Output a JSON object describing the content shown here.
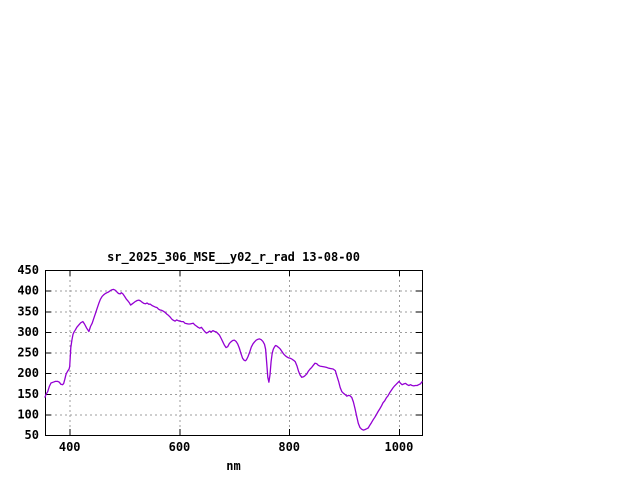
{
  "window": {
    "background": "#ffffff",
    "border_color": "#000000",
    "grid_color": "#9e9e9e",
    "text_color": "#000000"
  },
  "chart_data": {
    "type": "line",
    "title": "sr_2025_306_MSE__y02_r_rad 13-08-00",
    "xlabel": "nm",
    "ylabel": "",
    "xlim": [
      355,
      1042
    ],
    "ylim": [
      50,
      450
    ],
    "x_ticks": [
      400,
      600,
      800,
      1000
    ],
    "y_ticks": [
      50,
      100,
      150,
      200,
      250,
      300,
      350,
      400,
      450
    ],
    "grid": true,
    "legend_position": "none",
    "series": [
      {
        "name": "sr_2025_306_MSE__y02_r_rad",
        "color": "#9400d3",
        "points": [
          [
            355,
            142
          ],
          [
            357,
            149
          ],
          [
            360,
            155
          ],
          [
            363,
            168
          ],
          [
            366,
            176
          ],
          [
            370,
            178
          ],
          [
            374,
            180
          ],
          [
            378,
            180
          ],
          [
            381,
            178
          ],
          [
            384,
            173
          ],
          [
            387,
            172
          ],
          [
            389,
            175
          ],
          [
            391,
            185
          ],
          [
            393,
            196
          ],
          [
            395,
            202
          ],
          [
            397,
            206
          ],
          [
            399,
            210
          ],
          [
            400,
            216
          ],
          [
            402,
            262
          ],
          [
            404,
            280
          ],
          [
            406,
            294
          ],
          [
            408,
            300
          ],
          [
            410,
            304
          ],
          [
            413,
            311
          ],
          [
            416,
            316
          ],
          [
            420,
            322
          ],
          [
            424,
            325
          ],
          [
            427,
            319
          ],
          [
            431,
            309
          ],
          [
            435,
            301
          ],
          [
            438,
            313
          ],
          [
            441,
            321
          ],
          [
            444,
            333
          ],
          [
            447,
            345
          ],
          [
            450,
            357
          ],
          [
            453,
            369
          ],
          [
            456,
            379
          ],
          [
            459,
            386
          ],
          [
            462,
            390
          ],
          [
            465,
            393
          ],
          [
            468,
            395
          ],
          [
            471,
            397
          ],
          [
            474,
            400
          ],
          [
            477,
            402
          ],
          [
            480,
            403
          ],
          [
            483,
            401
          ],
          [
            486,
            397
          ],
          [
            489,
            393
          ],
          [
            492,
            392
          ],
          [
            494,
            395
          ],
          [
            497,
            392
          ],
          [
            500,
            386
          ],
          [
            503,
            380
          ],
          [
            506,
            375
          ],
          [
            509,
            370
          ],
          [
            511,
            365
          ],
          [
            514,
            368
          ],
          [
            517,
            371
          ],
          [
            520,
            374
          ],
          [
            523,
            376
          ],
          [
            526,
            377
          ],
          [
            529,
            375
          ],
          [
            532,
            372
          ],
          [
            535,
            369
          ],
          [
            538,
            368
          ],
          [
            541,
            370
          ],
          [
            544,
            367
          ],
          [
            547,
            367
          ],
          [
            550,
            364
          ],
          [
            553,
            362
          ],
          [
            556,
            360
          ],
          [
            559,
            359
          ],
          [
            562,
            355
          ],
          [
            565,
            353
          ],
          [
            568,
            352
          ],
          [
            571,
            350
          ],
          [
            574,
            347
          ],
          [
            577,
            343
          ],
          [
            580,
            340
          ],
          [
            583,
            336
          ],
          [
            586,
            331
          ],
          [
            589,
            328
          ],
          [
            592,
            326
          ],
          [
            595,
            329
          ],
          [
            598,
            327
          ],
          [
            601,
            326
          ],
          [
            604,
            325
          ],
          [
            607,
            325
          ],
          [
            610,
            321
          ],
          [
            613,
            320
          ],
          [
            616,
            319
          ],
          [
            619,
            319
          ],
          [
            622,
            320
          ],
          [
            625,
            321
          ],
          [
            628,
            317
          ],
          [
            631,
            314
          ],
          [
            634,
            311
          ],
          [
            637,
            309
          ],
          [
            640,
            311
          ],
          [
            643,
            306
          ],
          [
            646,
            301
          ],
          [
            649,
            297
          ],
          [
            652,
            299
          ],
          [
            655,
            302
          ],
          [
            658,
            300
          ],
          [
            661,
            303
          ],
          [
            664,
            301
          ],
          [
            667,
            300
          ],
          [
            670,
            296
          ],
          [
            673,
            292
          ],
          [
            676,
            284
          ],
          [
            679,
            276
          ],
          [
            682,
            268
          ],
          [
            685,
            262
          ],
          [
            688,
            264
          ],
          [
            691,
            272
          ],
          [
            694,
            276
          ],
          [
            697,
            279
          ],
          [
            700,
            280
          ],
          [
            703,
            277
          ],
          [
            706,
            271
          ],
          [
            709,
            261
          ],
          [
            712,
            248
          ],
          [
            715,
            236
          ],
          [
            718,
            231
          ],
          [
            720,
            230
          ],
          [
            722,
            232
          ],
          [
            725,
            240
          ],
          [
            728,
            251
          ],
          [
            731,
            263
          ],
          [
            734,
            271
          ],
          [
            737,
            276
          ],
          [
            740,
            280
          ],
          [
            743,
            282
          ],
          [
            746,
            283
          ],
          [
            749,
            281
          ],
          [
            752,
            277
          ],
          [
            755,
            270
          ],
          [
            757,
            258
          ],
          [
            759,
            225
          ],
          [
            761,
            190
          ],
          [
            763,
            178
          ],
          [
            765,
            196
          ],
          [
            767,
            228
          ],
          [
            769,
            248
          ],
          [
            771,
            258
          ],
          [
            773,
            263
          ],
          [
            775,
            267
          ],
          [
            777,
            266
          ],
          [
            779,
            264
          ],
          [
            781,
            262
          ],
          [
            784,
            258
          ],
          [
            787,
            252
          ],
          [
            790,
            246
          ],
          [
            793,
            242
          ],
          [
            796,
            239
          ],
          [
            799,
            237
          ],
          [
            802,
            236
          ],
          [
            805,
            234
          ],
          [
            808,
            231
          ],
          [
            811,
            228
          ],
          [
            814,
            218
          ],
          [
            817,
            205
          ],
          [
            820,
            195
          ],
          [
            823,
            190
          ],
          [
            826,
            191
          ],
          [
            829,
            194
          ],
          [
            832,
            198
          ],
          [
            835,
            205
          ],
          [
            838,
            210
          ],
          [
            841,
            214
          ],
          [
            844,
            219
          ],
          [
            847,
            224
          ],
          [
            850,
            223
          ],
          [
            853,
            219
          ],
          [
            856,
            217
          ],
          [
            860,
            216
          ],
          [
            864,
            215
          ],
          [
            868,
            214
          ],
          [
            872,
            212
          ],
          [
            876,
            211
          ],
          [
            880,
            210
          ],
          [
            884,
            206
          ],
          [
            887,
            193
          ],
          [
            890,
            180
          ],
          [
            893,
            165
          ],
          [
            896,
            155
          ],
          [
            899,
            151
          ],
          [
            902,
            148
          ],
          [
            905,
            144
          ],
          [
            908,
            146
          ],
          [
            911,
            145
          ],
          [
            914,
            141
          ],
          [
            917,
            130
          ],
          [
            920,
            113
          ],
          [
            923,
            95
          ],
          [
            926,
            78
          ],
          [
            929,
            68
          ],
          [
            932,
            64
          ],
          [
            935,
            62
          ],
          [
            938,
            63
          ],
          [
            941,
            65
          ],
          [
            944,
            67
          ],
          [
            947,
            74
          ],
          [
            950,
            80
          ],
          [
            953,
            87
          ],
          [
            956,
            93
          ],
          [
            959,
            100
          ],
          [
            962,
            107
          ],
          [
            965,
            113
          ],
          [
            968,
            120
          ],
          [
            971,
            128
          ],
          [
            974,
            133
          ],
          [
            977,
            140
          ],
          [
            980,
            145
          ],
          [
            983,
            152
          ],
          [
            986,
            158
          ],
          [
            989,
            164
          ],
          [
            992,
            169
          ],
          [
            995,
            173
          ],
          [
            998,
            177
          ],
          [
            1000,
            180
          ],
          [
            1003,
            175
          ],
          [
            1006,
            172
          ],
          [
            1009,
            174
          ],
          [
            1012,
            175
          ],
          [
            1015,
            172
          ],
          [
            1018,
            170
          ],
          [
            1021,
            172
          ],
          [
            1024,
            170
          ],
          [
            1027,
            169
          ],
          [
            1030,
            170
          ],
          [
            1033,
            170
          ],
          [
            1036,
            172
          ],
          [
            1039,
            174
          ],
          [
            1042,
            179
          ]
        ]
      }
    ]
  }
}
